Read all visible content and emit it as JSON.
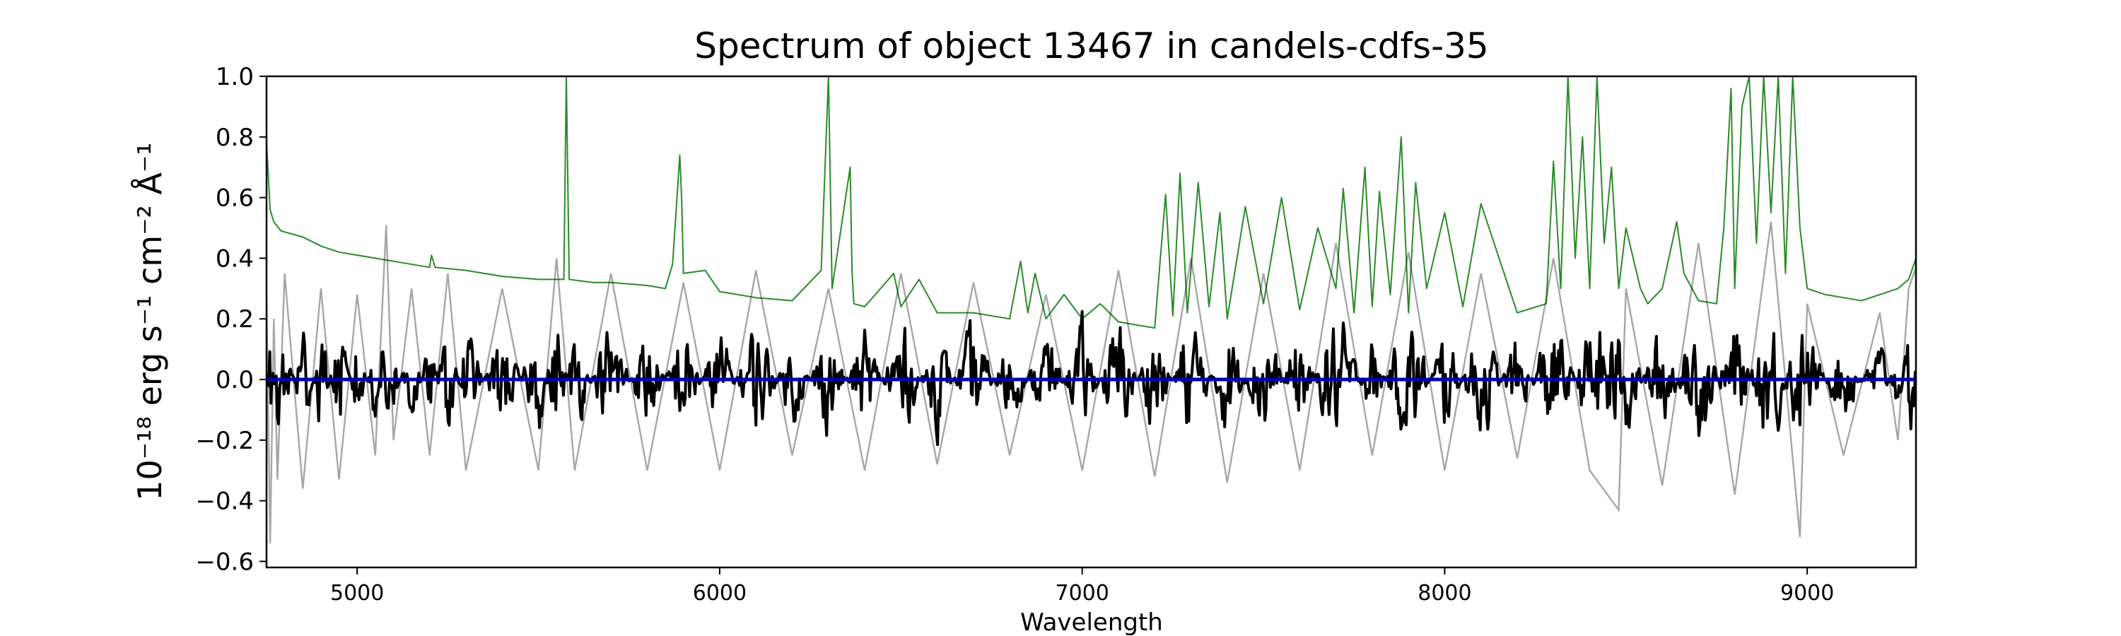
{
  "chart_data": {
    "type": "line",
    "title": "Spectrum of object 13467 in candels-cdfs-35",
    "xlabel": "Wavelength",
    "ylabel": "10⁻¹⁸ erg s⁻¹ cm⁻² Å⁻¹",
    "xlim": [
      4750,
      9300
    ],
    "ylim": [
      -0.62,
      1.0
    ],
    "x_ticks": [
      5000,
      6000,
      7000,
      8000,
      9000
    ],
    "x_tick_labels": [
      "5000",
      "6000",
      "7000",
      "8000",
      "9000"
    ],
    "y_ticks": [
      -0.6,
      -0.4,
      -0.2,
      0.0,
      0.2,
      0.4,
      0.6,
      0.8,
      1.0
    ],
    "y_tick_labels": [
      "−0.6",
      "−0.4",
      "−0.2",
      "0.0",
      "0.2",
      "0.4",
      "0.6",
      "0.8",
      "1.0"
    ],
    "grid": false,
    "series": [
      {
        "color": "#2b8a2b",
        "style": "thin",
        "x": [
          4750,
          4760,
          4770,
          4790,
          4820,
          4850,
          4900,
          4950,
          5000,
          5100,
          5200,
          5205,
          5215,
          5300,
          5400,
          5500,
          5570,
          5577,
          5585,
          5650,
          5700,
          5800,
          5850,
          5870,
          5890,
          5895,
          5900,
          5960,
          6000,
          6100,
          6200,
          6280,
          6300,
          6310,
          6360,
          6365,
          6370,
          6400,
          6480,
          6500,
          6550,
          6600,
          6700,
          6800,
          6830,
          6850,
          6870,
          6900,
          6950,
          7000,
          7050,
          7100,
          7150,
          7200,
          7230,
          7250,
          7270,
          7290,
          7320,
          7350,
          7380,
          7400,
          7450,
          7500,
          7550,
          7600,
          7650,
          7700,
          7720,
          7750,
          7780,
          7800,
          7820,
          7850,
          7880,
          7900,
          7920,
          7950,
          8000,
          8050,
          8100,
          8200,
          8280,
          8300,
          8320,
          8340,
          8360,
          8380,
          8400,
          8420,
          8440,
          8460,
          8480,
          8500,
          8540,
          8560,
          8600,
          8640,
          8660,
          8700,
          8750,
          8770,
          8790,
          8800,
          8820,
          8840,
          8860,
          8880,
          8900,
          8920,
          8940,
          8960,
          8980,
          9000,
          9050,
          9100,
          9150,
          9200,
          9250,
          9280,
          9300
        ],
        "y": [
          0.78,
          0.56,
          0.52,
          0.49,
          0.48,
          0.47,
          0.44,
          0.42,
          0.41,
          0.39,
          0.37,
          0.41,
          0.37,
          0.36,
          0.34,
          0.33,
          0.33,
          1.0,
          0.33,
          0.32,
          0.32,
          0.31,
          0.3,
          0.38,
          0.74,
          0.6,
          0.35,
          0.36,
          0.29,
          0.27,
          0.26,
          0.36,
          1.0,
          0.3,
          0.7,
          0.36,
          0.25,
          0.24,
          0.35,
          0.24,
          0.33,
          0.22,
          0.22,
          0.2,
          0.39,
          0.22,
          0.35,
          0.2,
          0.28,
          0.2,
          0.25,
          0.19,
          0.18,
          0.17,
          0.61,
          0.21,
          0.68,
          0.22,
          0.65,
          0.24,
          0.55,
          0.2,
          0.57,
          0.25,
          0.6,
          0.23,
          0.5,
          0.3,
          0.63,
          0.22,
          0.7,
          0.24,
          0.62,
          0.28,
          0.8,
          0.22,
          0.65,
          0.3,
          0.55,
          0.24,
          0.58,
          0.22,
          0.25,
          0.72,
          0.3,
          1.0,
          0.4,
          0.8,
          0.3,
          1.0,
          0.45,
          0.7,
          0.3,
          0.5,
          0.3,
          0.25,
          0.3,
          0.52,
          0.35,
          0.26,
          0.25,
          0.5,
          0.96,
          0.3,
          0.9,
          1.0,
          0.45,
          1.0,
          0.55,
          1.0,
          0.35,
          1.0,
          0.5,
          0.3,
          0.28,
          0.27,
          0.26,
          0.28,
          0.3,
          0.33,
          0.4
        ],
        "width": 2
      },
      {
        "color": "#000000",
        "style": "noisy",
        "x": [
          4750,
          4760,
          4770,
          4780,
          4800,
          4850,
          4900,
          4950,
          5000,
          5050,
          5080,
          5100,
          5150,
          5200,
          5250,
          5300,
          5400,
          5500,
          5550,
          5600,
          5700,
          5800,
          5900,
          6000,
          6100,
          6200,
          6300,
          6400,
          6500,
          6600,
          6700,
          6800,
          6900,
          7000,
          7100,
          7200,
          7300,
          7400,
          7500,
          7600,
          7700,
          7800,
          7900,
          8000,
          8100,
          8200,
          8300,
          8400,
          8480,
          8500,
          8600,
          8700,
          8800,
          8900,
          8980,
          9000,
          9100,
          9200,
          9250,
          9280,
          9300
        ],
        "y": [
          0.26,
          -0.54,
          0.2,
          -0.33,
          0.35,
          -0.36,
          0.3,
          -0.33,
          0.28,
          -0.25,
          0.51,
          -0.2,
          0.3,
          -0.25,
          0.35,
          -0.3,
          0.3,
          -0.3,
          0.4,
          -0.3,
          0.35,
          -0.3,
          0.32,
          -0.3,
          0.36,
          -0.25,
          0.3,
          -0.3,
          0.35,
          -0.28,
          0.32,
          -0.25,
          0.28,
          -0.3,
          0.36,
          -0.32,
          0.4,
          -0.34,
          0.35,
          -0.3,
          0.45,
          -0.25,
          0.42,
          -0.3,
          0.35,
          -0.26,
          0.4,
          -0.3,
          -0.43,
          0.3,
          -0.35,
          0.45,
          -0.38,
          0.52,
          -0.52,
          0.25,
          -0.25,
          0.22,
          -0.2,
          0.3,
          0.37
        ],
        "width": 4
      },
      {
        "color": "#0000aa",
        "style": "flat",
        "x": [
          4750,
          9300
        ],
        "y": [
          0.0,
          0.0
        ],
        "width": 5
      }
    ]
  }
}
